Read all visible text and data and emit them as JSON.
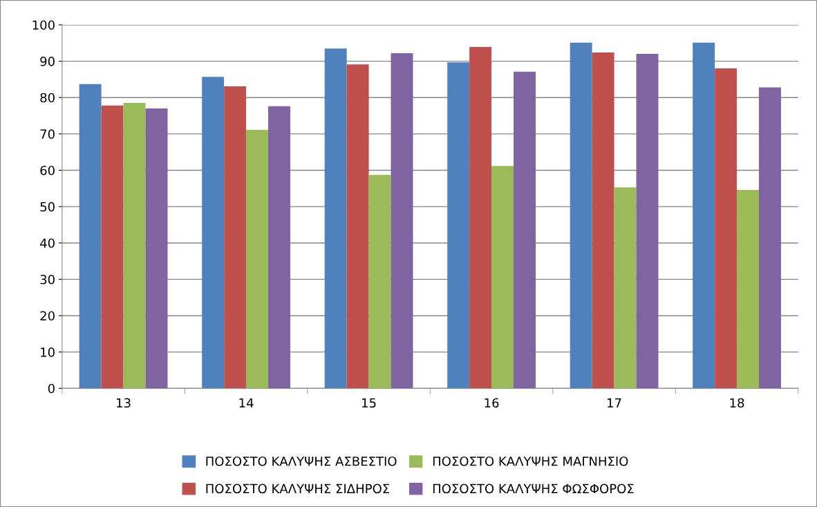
{
  "chart_data": {
    "type": "bar",
    "categories": [
      "13",
      "14",
      "15",
      "16",
      "17",
      "18"
    ],
    "series": [
      {
        "name": "ΠΟΣΟΣΤΟ ΚΑΛΥΨΗΣ ΑΣΒΕΣΤΙΟ",
        "color": "#4f81bd",
        "values": [
          83.7,
          85.7,
          93.5,
          89.7,
          95.1,
          95.1
        ]
      },
      {
        "name": "ΠΟΣΟΣΤΟ ΚΑΛΥΨΗΣ ΣΙΔΗΡΟΣ",
        "color": "#c0504d",
        "values": [
          77.8,
          83.1,
          89.1,
          93.9,
          92.4,
          88.0
        ]
      },
      {
        "name": "ΠΟΣΟΣΤΟ ΚΑΛΥΨΗΣ ΜΑΓΝΗΣΙΟ",
        "color": "#9bbb59",
        "values": [
          78.5,
          71.1,
          58.7,
          61.2,
          55.3,
          54.6
        ]
      },
      {
        "name": "ΠΟΣΟΣΤΟ ΚΑΛΥΨΗΣ ΦΩΣΦΟΡΟΣ",
        "color": "#8064a2",
        "values": [
          77.0,
          77.6,
          92.2,
          87.1,
          92.0,
          82.8
        ]
      }
    ],
    "ylim": [
      0,
      100
    ],
    "yticks": [
      0,
      10,
      20,
      30,
      40,
      50,
      60,
      70,
      80,
      90,
      100
    ],
    "grid": "y",
    "legend": "bottom"
  }
}
